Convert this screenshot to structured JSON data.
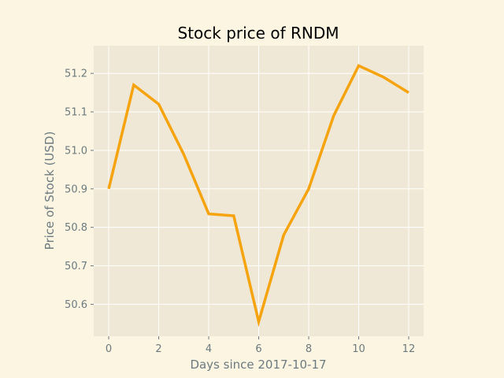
{
  "chart_data": {
    "type": "line",
    "title": "Stock price of RNDM",
    "xlabel": "Days since 2017-10-17",
    "ylabel": "Price of Stock (USD)",
    "xlim": [
      -0.6,
      12.6
    ],
    "ylim": [
      50.517,
      51.272
    ],
    "xticks": [
      0,
      2,
      4,
      6,
      8,
      10,
      12
    ],
    "yticks": [
      50.6,
      50.7,
      50.8,
      50.9,
      51.0,
      51.1,
      51.2
    ],
    "ytick_labels": [
      "50.6",
      "50.7",
      "50.8",
      "50.9",
      "51.0",
      "51.1",
      "51.2"
    ],
    "grid": true,
    "series": [
      {
        "color": "#f5a30e",
        "x": [
          0,
          1,
          2,
          3,
          4,
          5,
          6,
          7,
          8,
          9,
          10,
          11,
          12
        ],
        "y": [
          50.9,
          51.17,
          51.12,
          50.99,
          50.835,
          50.83,
          50.555,
          50.78,
          50.9,
          51.09,
          51.22,
          51.19,
          51.15
        ]
      }
    ],
    "colors": {
      "figure_bg": "#fcf5e1",
      "axes_bg": "#f0e8d6",
      "grid": "#ffffff",
      "tick_text": "#6b7a80"
    }
  }
}
